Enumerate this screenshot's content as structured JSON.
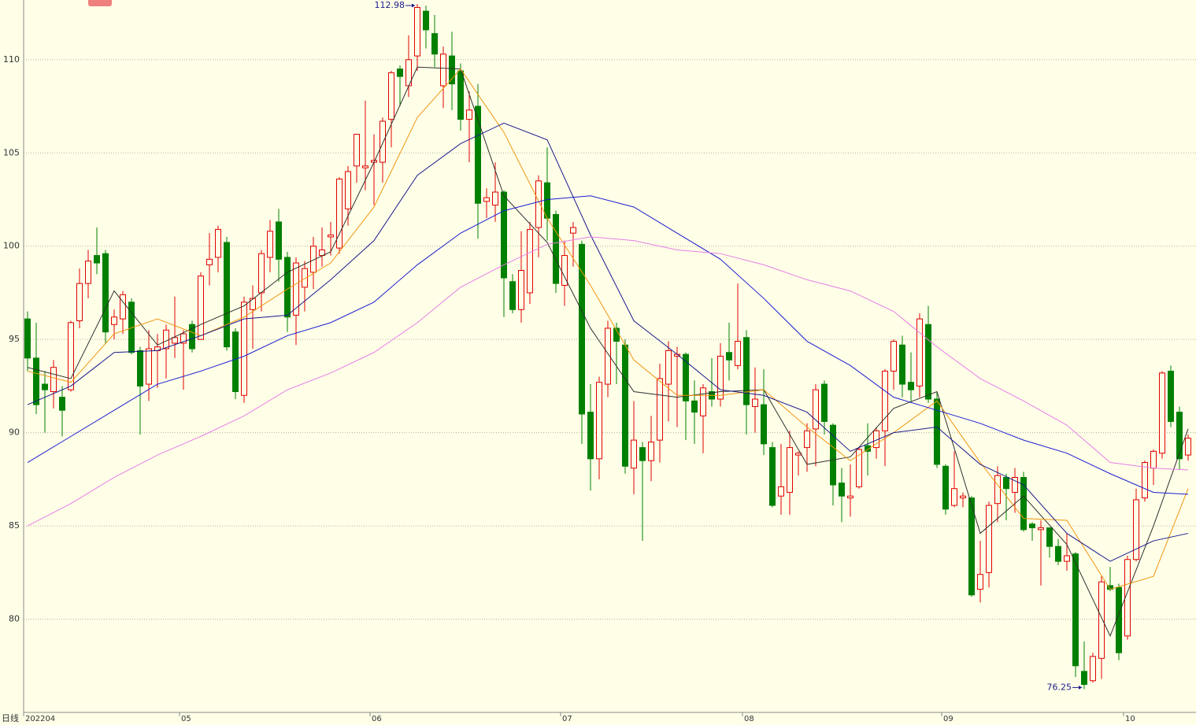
{
  "chart_data": {
    "type": "candlestick",
    "period_label": "日线",
    "max_label": "112.98",
    "min_label": "76.25",
    "up_color": "#e00000",
    "down_color": "#008000",
    "ylim": [
      75,
      113.2
    ],
    "yticks": [
      80,
      85,
      90,
      95,
      100,
      105,
      110
    ],
    "grid": true,
    "categories": [
      "202204",
      null,
      null,
      null,
      null,
      null,
      null,
      null,
      null,
      null,
      null,
      null,
      null,
      null,
      null,
      null,
      null,
      null,
      "05",
      null,
      null,
      null,
      null,
      null,
      null,
      null,
      null,
      null,
      null,
      null,
      null,
      null,
      null,
      null,
      null,
      null,
      null,
      null,
      null,
      null,
      "06",
      null,
      null,
      null,
      null,
      null,
      null,
      null,
      null,
      null,
      null,
      null,
      null,
      null,
      null,
      null,
      null,
      null,
      null,
      null,
      null,
      null,
      "07",
      null,
      null,
      null,
      null,
      null,
      null,
      null,
      null,
      null,
      null,
      null,
      null,
      null,
      null,
      null,
      null,
      null,
      null,
      null,
      null,
      "08",
      null,
      null,
      null,
      null,
      null,
      null,
      null,
      null,
      null,
      null,
      null,
      null,
      null,
      null,
      null,
      null,
      null,
      null,
      null,
      null,
      null,
      null,
      "09",
      null,
      null,
      null,
      null,
      null,
      null,
      null,
      null,
      null,
      null,
      null,
      null,
      null,
      null,
      null,
      null,
      null,
      null,
      null,
      null,
      "10",
      null,
      null,
      null,
      null,
      null,
      null,
      null
    ],
    "open": [
      96.1,
      94,
      92.6,
      92.2,
      91.9,
      92.3,
      96,
      98,
      99.5,
      99.6,
      95.8,
      96.1,
      97,
      94.4,
      92.6,
      94.4,
      94.5,
      94.8,
      94.8,
      95.8,
      95,
      99,
      99.4,
      100.2,
      95.4,
      92,
      96.6,
      97.5,
      99.4,
      101.3,
      99.4,
      96.3,
      97.8,
      98.6,
      99.5,
      100.5,
      99.9,
      102,
      104.3,
      104.2,
      104.5,
      104.5,
      106.8,
      109.5,
      108.6,
      110.2,
      112.6,
      111.4,
      108.6,
      110.2,
      109.4,
      106.8,
      107.5,
      102.4,
      102.2,
      102.9,
      98.1,
      96.6,
      97.5,
      101,
      103.4,
      101.7,
      97.9,
      100.7,
      100.1,
      91.1,
      88.6,
      92.6,
      95.6,
      94.7,
      88.1,
      89.2,
      88.5,
      89.6,
      92.6,
      94.1,
      94.2,
      91.7,
      90.9,
      92.2,
      91.8,
      94.3,
      93.6,
      95.1,
      91.4,
      91.5,
      89.2,
      86.6,
      86.8,
      88.8,
      89.2,
      90.2,
      92.6,
      90.4,
      87.3,
      86.5,
      87.1,
      89.3,
      89.2,
      90.1,
      93.3,
      94.7,
      92.7,
      92.5,
      95.8,
      91.8,
      88.2,
      86.1,
      86.5,
      86.5,
      81.6,
      82.5,
      86.2,
      87.6,
      86.8,
      87.6,
      85.1,
      84.8,
      84.9,
      83.9,
      83.1,
      83.5,
      77.2,
      76.7,
      77.9,
      81.8,
      81.7,
      79.1,
      83.2,
      86.5,
      88.1,
      88.9,
      93.3,
      91.1,
      88.8
    ],
    "high": [
      96.5,
      95.9,
      93.3,
      93.9,
      92.5,
      96,
      98.8,
      99.8,
      101,
      99.8,
      96.6,
      97.6,
      97.2,
      94.6,
      95.5,
      95.3,
      95.8,
      97.3,
      95.5,
      96,
      98.6,
      100.7,
      101.1,
      100.5,
      95.6,
      97.3,
      97.9,
      99.8,
      101.4,
      102,
      99.7,
      99.4,
      99.2,
      100.5,
      101,
      101.3,
      103.7,
      104.3,
      106,
      107.8,
      106,
      106.9,
      109.4,
      109.7,
      111.3,
      112.98,
      112.9,
      112.4,
      110.7,
      111.5,
      109.8,
      108.3,
      108.7,
      103.1,
      104.5,
      103,
      98.5,
      100.8,
      101.3,
      103.8,
      105.3,
      101.9,
      100.3,
      101.3,
      100.3,
      92.6,
      93,
      96,
      95.9,
      95,
      91.7,
      89.5,
      90.9,
      93.7,
      94.9,
      94.6,
      94.3,
      92.8,
      92.6,
      94,
      94.8,
      95.9,
      98,
      95.5,
      93.5,
      93.4,
      89.5,
      89.4,
      90.1,
      89,
      90.5,
      92.6,
      92.8,
      90.5,
      88.1,
      88.3,
      89.2,
      90.5,
      90.3,
      93.4,
      95,
      95.2,
      94.3,
      96.4,
      96.8,
      92.2,
      88.3,
      89,
      86.8,
      86.6,
      84.2,
      86.3,
      88.2,
      87.8,
      88.1,
      87.9,
      85.2,
      85.3,
      84.9,
      84.3,
      84.6,
      83.6,
      78.8,
      78.2,
      82.3,
      82.8,
      81.9,
      83.4,
      87,
      88.5,
      89.1,
      93.3,
      93.6,
      91.4,
      89.9
    ],
    "low": [
      93.3,
      91,
      90,
      91.3,
      89.8,
      92.2,
      95.6,
      97.2,
      98.5,
      94.8,
      95,
      95.3,
      94.2,
      89.9,
      91.7,
      92.4,
      92.9,
      94,
      92.3,
      94.3,
      95,
      97.9,
      98.6,
      94.4,
      91.8,
      91.6,
      94.5,
      96.5,
      98.6,
      98.1,
      95.4,
      94.7,
      96.5,
      97.7,
      98.9,
      99.5,
      99.6,
      101.1,
      103.4,
      103,
      102.2,
      103.4,
      105.3,
      107.5,
      108,
      109.4,
      110.6,
      109.6,
      107.4,
      107.3,
      106.2,
      104.5,
      100.4,
      101.5,
      101.3,
      96.2,
      96.4,
      95.9,
      96.9,
      99.4,
      100.3,
      97.5,
      96.8,
      98.9,
      89.4,
      86.9,
      87.5,
      91.9,
      92.6,
      87.8,
      86.7,
      84.2,
      87.4,
      88.4,
      90.6,
      90.3,
      89.6,
      89.4,
      88.9,
      91.4,
      91.4,
      92.8,
      93.4,
      89.9,
      90,
      88.8,
      86,
      85.6,
      85.6,
      87.7,
      87.9,
      88.2,
      89.9,
      86.1,
      85.2,
      85.5,
      87,
      87.7,
      88.6,
      88.2,
      92.3,
      91.9,
      91.6,
      91.9,
      91.6,
      88.1,
      85.6,
      86,
      86,
      81.2,
      80.9,
      81.7,
      85.2,
      85.3,
      85.7,
      84.7,
      84.2,
      81.8,
      83.3,
      82.9,
      82.6,
      76.9,
      76.25,
      76.6,
      76.8,
      81.5,
      77.8,
      78.9,
      83.1,
      86.3,
      87.2,
      88.6,
      90.3,
      88,
      88.5
    ],
    "close": [
      94,
      91.5,
      92.3,
      93.5,
      91.2,
      95.9,
      98,
      99.2,
      99.1,
      95.4,
      96.2,
      97.4,
      94.3,
      92.5,
      94.5,
      94.6,
      95.5,
      95.1,
      95.3,
      94.5,
      98.4,
      99.3,
      100.9,
      94.6,
      92.2,
      97,
      97.2,
      99.6,
      100.8,
      99.3,
      96.2,
      99.1,
      98.8,
      100,
      99.8,
      100.6,
      103.6,
      104,
      106,
      104.3,
      104.6,
      106.7,
      109.3,
      109.1,
      110,
      112.8,
      111.6,
      110.3,
      110.3,
      108.7,
      106.8,
      107.3,
      102.3,
      102.6,
      102.9,
      98.3,
      96.6,
      98.7,
      100.9,
      103.5,
      101.5,
      98,
      99.5,
      101,
      91,
      88.6,
      92.7,
      95.6,
      94.9,
      88.2,
      89.6,
      88.5,
      89.5,
      92.9,
      94.4,
      94.2,
      91.7,
      91.1,
      92.4,
      91.8,
      94.1,
      93.9,
      94.9,
      91.5,
      91.8,
      89.4,
      86.1,
      87.1,
      89.2,
      88.9,
      90.1,
      92.3,
      90.6,
      87.2,
      86.6,
      86.6,
      89.1,
      89,
      90.1,
      93.3,
      94.9,
      92.6,
      92.3,
      96.1,
      91.8,
      88.3,
      85.9,
      87,
      86.6,
      81.3,
      82.4,
      86.1,
      87.7,
      87,
      87.6,
      84.8,
      84.9,
      84.9,
      83.9,
      83.1,
      83.4,
      77.5,
      76.5,
      78,
      82,
      81.6,
      78.2,
      83.2,
      86.4,
      88.4,
      89,
      93.2,
      90.6,
      88.6,
      89.7
    ],
    "series": [
      {
        "color": "#303030",
        "x": [
          0,
          5,
          10,
          15,
          20,
          25,
          30,
          35,
          40,
          45,
          50,
          55,
          60,
          65,
          70,
          75,
          80,
          85,
          90,
          95,
          100,
          105,
          110,
          115,
          120,
          125,
          130,
          134
        ],
        "values": [
          93.5,
          92.9,
          97.6,
          94.7,
          95.8,
          96.8,
          98.6,
          99.7,
          104.5,
          109.6,
          109.5,
          102.7,
          100.2,
          95.6,
          92.2,
          91.9,
          92.2,
          92.3,
          88.3,
          88.7,
          91.3,
          92.2,
          84.6,
          86.6,
          84,
          79.1,
          85,
          90.2
        ]
      },
      {
        "color": "#f0960f",
        "x": [
          0,
          5,
          10,
          15,
          20,
          25,
          30,
          35,
          40,
          45,
          50,
          55,
          60,
          65,
          70,
          75,
          80,
          85,
          90,
          95,
          100,
          105,
          110,
          115,
          120,
          125,
          130,
          134
        ],
        "values": [
          93.3,
          92.7,
          95.3,
          96.1,
          95.2,
          96.2,
          97.7,
          99.1,
          102.1,
          106.9,
          109.5,
          106.1,
          101.5,
          97.9,
          93.9,
          92,
          92,
          92.3,
          90.3,
          88.5,
          90,
          91.7,
          88.4,
          85.4,
          85.3,
          81.6,
          82.3,
          87
        ]
      },
      {
        "color": "#1a1a8c",
        "x": [
          0,
          5,
          10,
          15,
          20,
          25,
          30,
          35,
          40,
          45,
          50,
          55,
          60,
          65,
          70,
          75,
          80,
          85,
          90,
          95,
          100,
          105,
          110,
          115,
          120,
          125,
          130,
          134
        ],
        "values": [
          91.5,
          92.5,
          94.3,
          94.4,
          95.2,
          96.1,
          96.3,
          98.2,
          100.3,
          103.8,
          105.5,
          106.6,
          105.7,
          100.6,
          96,
          94.2,
          92.3,
          92,
          91.1,
          89,
          90,
          90.3,
          88.3,
          87.2,
          84.6,
          83.1,
          84.2,
          84.6
        ]
      },
      {
        "color": "#1c1cd0",
        "x": [
          0,
          5,
          10,
          15,
          20,
          25,
          30,
          35,
          40,
          45,
          50,
          55,
          60,
          65,
          70,
          75,
          80,
          85,
          90,
          95,
          100,
          105,
          110,
          115,
          120,
          125,
          130,
          134
        ],
        "values": [
          88.4,
          89.8,
          91.2,
          92.6,
          93.3,
          94.1,
          95.2,
          95.9,
          97,
          99,
          100.7,
          101.9,
          102.5,
          102.7,
          102.1,
          100.7,
          99.3,
          97.2,
          94.9,
          93.6,
          91.9,
          91.2,
          90.5,
          89.6,
          88.9,
          87.8,
          86.8,
          86.7
        ]
      },
      {
        "color": "#e67ee6",
        "x": [
          0,
          5,
          10,
          15,
          20,
          25,
          30,
          35,
          40,
          45,
          50,
          55,
          60,
          65,
          70,
          75,
          80,
          85,
          90,
          95,
          100,
          105,
          110,
          115,
          120,
          125,
          130,
          134
        ],
        "values": [
          85,
          86.2,
          87.6,
          88.8,
          89.8,
          90.9,
          92.3,
          93.2,
          94.3,
          95.9,
          97.8,
          99,
          100.1,
          100.5,
          100.3,
          99.8,
          99.6,
          99,
          98.2,
          97.6,
          96.5,
          94.6,
          92.9,
          91.7,
          90.4,
          88.4,
          88.1,
          88
        ]
      }
    ]
  }
}
